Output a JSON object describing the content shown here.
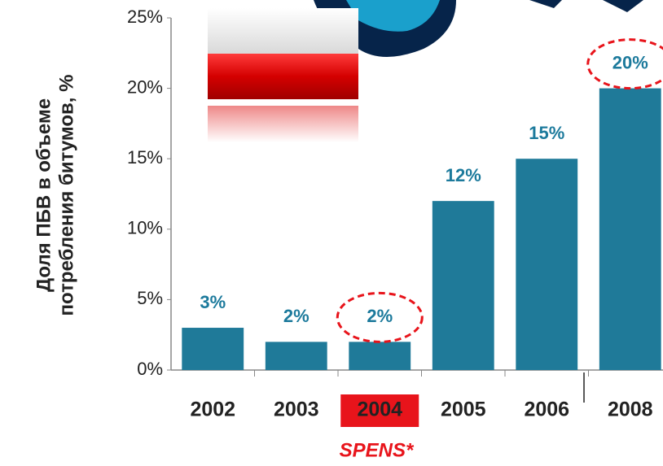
{
  "chart_data": {
    "type": "bar",
    "y_axis_label": [
      "Доля ПБВ в объеме",
      "потребления битумов, %"
    ],
    "annotation": "SPENS*",
    "categories": [
      "2002",
      "2003",
      "2004",
      "2005",
      "2006",
      "2008"
    ],
    "values": [
      3,
      2,
      2,
      12,
      15,
      20
    ],
    "value_labels": [
      "3%",
      "2%",
      "2%",
      "12%",
      "15%",
      "20%"
    ],
    "color": "#1f7a99",
    "ylim": [
      0,
      25
    ],
    "yticks": [
      {
        "value": 0,
        "label": "0%"
      },
      {
        "value": 5,
        "label": "5%"
      },
      {
        "value": 10,
        "label": "10%"
      },
      {
        "value": 15,
        "label": "15%"
      },
      {
        "value": 20,
        "label": "20%"
      },
      {
        "value": 25,
        "label": "25%"
      }
    ],
    "highlight": 2,
    "circled": [
      2,
      5
    ],
    "highlight_color": "#e8141b"
  }
}
